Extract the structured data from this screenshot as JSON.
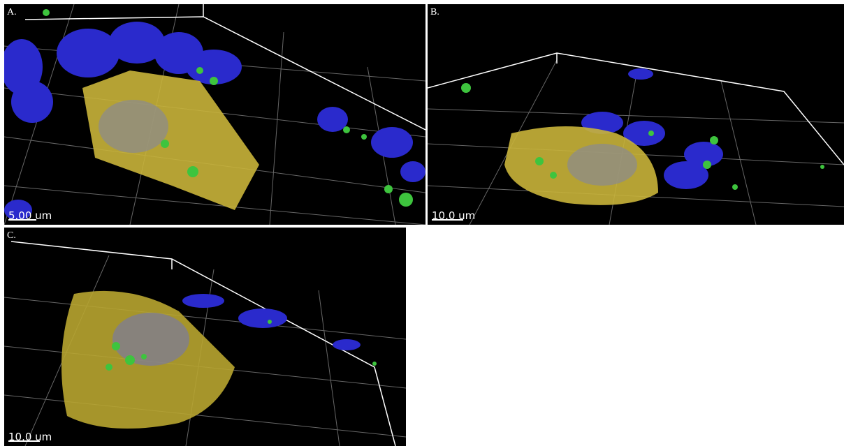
{
  "panels": [
    {
      "label": "A.",
      "scale_bar": "5.00 um"
    },
    {
      "label": "B.",
      "scale_bar": "10.0 um"
    },
    {
      "label": "C.",
      "scale_bar": "10.0 um"
    }
  ]
}
